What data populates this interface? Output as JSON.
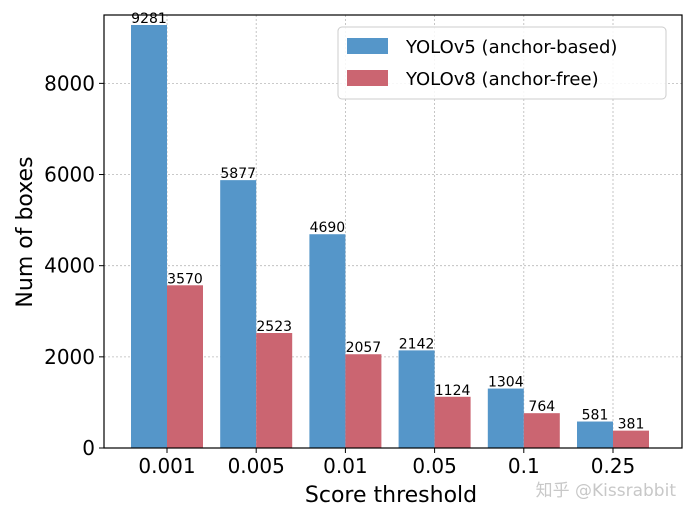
{
  "chart_data": {
    "type": "bar",
    "title": "",
    "xlabel": "Score threshold",
    "ylabel": "Num of boxes",
    "categories": [
      "0.001",
      "0.005",
      "0.01",
      "0.05",
      "0.1",
      "0.25"
    ],
    "series": [
      {
        "name": "YOLOv5 (anchor-based)",
        "values": [
          9281,
          5877,
          4690,
          2142,
          1304,
          581
        ],
        "color": "#5596c9"
      },
      {
        "name": "YOLOv8 (anchor-free)",
        "values": [
          3570,
          2523,
          2057,
          1124,
          764,
          381
        ],
        "color": "#cb6571"
      }
    ],
    "ylim": [
      0,
      9500
    ],
    "yticks": [
      0,
      2000,
      4000,
      6000,
      8000
    ],
    "grid": true,
    "legend_position": "top-right"
  },
  "watermark": "知乎 @Kissrabbit"
}
